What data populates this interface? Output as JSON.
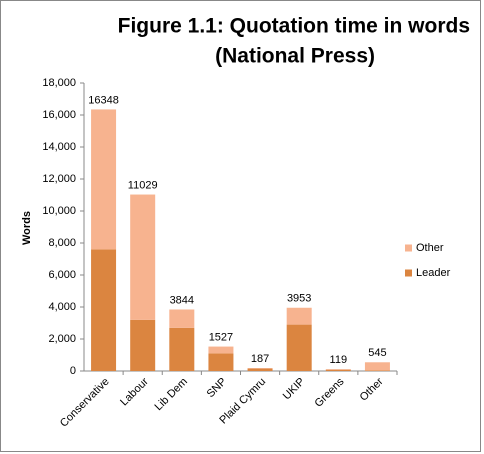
{
  "chart_data": {
    "type": "bar",
    "stacked": true,
    "title": [
      "Figure 1.1: Quotation time in words",
      "(National Press)"
    ],
    "y_label": "Words",
    "categories": [
      "Conservative",
      "Labour",
      "Lib Dem",
      "SNP",
      "Plaid Cymru",
      "UKIP",
      "Greens",
      "Other"
    ],
    "series": [
      {
        "name": "Leader",
        "color": "#db8540",
        "values": [
          7600,
          3200,
          2700,
          1100,
          150,
          2900,
          80,
          40
        ]
      },
      {
        "name": "Other",
        "color": "#f7b38f",
        "values": [
          8748,
          7829,
          1144,
          427,
          37,
          1053,
          39,
          505
        ]
      }
    ],
    "totals": [
      16348,
      11029,
      3844,
      1527,
      187,
      3953,
      119,
      545
    ],
    "ylim": [
      0,
      18000
    ],
    "yticks": [
      0,
      {
        "value": 2000,
        "label": "2,000"
      },
      {
        "value": 4000,
        "label": "4,000"
      },
      {
        "value": 6000,
        "label": "6,000"
      },
      {
        "value": 8000,
        "label": "8,000"
      },
      {
        "value": 10000,
        "label": "10,000"
      },
      {
        "value": 12000,
        "label": "12,000"
      },
      {
        "value": 14000,
        "label": "14,000"
      },
      {
        "value": 16000,
        "label": "16,000"
      },
      {
        "value": 18000,
        "label": "18,000"
      }
    ],
    "legend": "right"
  }
}
